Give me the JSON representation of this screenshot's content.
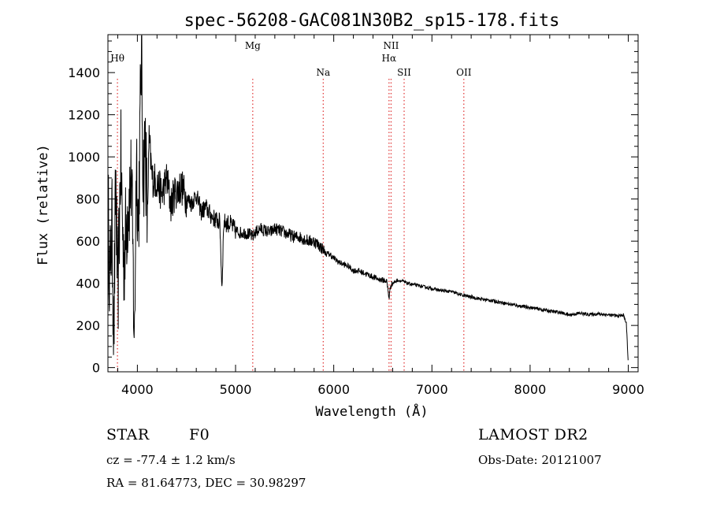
{
  "chart_data": {
    "type": "line",
    "title": "spec-56208-GAC081N30B2_sp15-178.fits",
    "xlabel": "Wavelength (Å)",
    "ylabel": "Flux (relative)",
    "xlim": [
      3700,
      9100
    ],
    "ylim": [
      -20,
      1580
    ],
    "xticks": [
      4000,
      5000,
      6000,
      7000,
      8000,
      9000
    ],
    "yticks": [
      0,
      200,
      400,
      600,
      800,
      1000,
      1200,
      1400
    ],
    "grid": false,
    "line_color": "#000000",
    "marker_color": "#e03030",
    "spectral_lines": [
      {
        "label": "Hθ",
        "x": 3797,
        "row": 2
      },
      {
        "label": "Mg",
        "x": 5175,
        "row": 1
      },
      {
        "label": "Na",
        "x": 5893,
        "row": 3
      },
      {
        "label": "NII",
        "x": 6584,
        "row": 1
      },
      {
        "label": "Hα",
        "x": 6563,
        "row": 2
      },
      {
        "label": "SII",
        "x": 6717,
        "row": 3
      },
      {
        "label": "OII",
        "x": 7325,
        "row": 3
      }
    ],
    "series": [
      {
        "x": [
          3700,
          3720,
          3740,
          3760,
          3780,
          3800,
          3830,
          3860,
          3900,
          3940,
          3970,
          3990,
          4010,
          4040,
          4060,
          4080,
          4101,
          4120,
          4150,
          4200,
          4250,
          4300,
          4340,
          4380,
          4450,
          4500,
          4550,
          4600,
          4650,
          4700,
          4750,
          4800,
          4840,
          4861,
          4880,
          4950,
          5000,
          5050,
          5100,
          5150,
          5175,
          5200,
          5250,
          5300,
          5350,
          5400,
          5450,
          5500,
          5550,
          5600,
          5650,
          5700,
          5750,
          5800,
          5850,
          5893,
          5920,
          5950,
          6000,
          6050,
          6100,
          6150,
          6200,
          6250,
          6300,
          6350,
          6400,
          6450,
          6500,
          6540,
          6563,
          6580,
          6600,
          6650,
          6700,
          6750,
          6800,
          6900,
          7000,
          7100,
          7200,
          7300,
          7400,
          7500,
          7600,
          7700,
          7800,
          7900,
          8000,
          8100,
          8200,
          8300,
          8400,
          8500,
          8600,
          8700,
          8800,
          8900,
          8950,
          8980,
          8990,
          9000
        ],
        "y": [
          800,
          400,
          700,
          150,
          900,
          300,
          1000,
          500,
          750,
          900,
          100,
          1050,
          650,
          1500,
          900,
          1100,
          700,
          1080,
          900,
          880,
          820,
          900,
          770,
          830,
          860,
          800,
          780,
          820,
          740,
          760,
          720,
          700,
          690,
          380,
          690,
          680,
          650,
          640,
          640,
          630,
          620,
          640,
          660,
          650,
          640,
          660,
          650,
          640,
          630,
          620,
          620,
          610,
          600,
          600,
          580,
          560,
          540,
          540,
          520,
          500,
          490,
          480,
          460,
          460,
          450,
          440,
          430,
          420,
          415,
          410,
          330,
          390,
          400,
          415,
          410,
          400,
          395,
          385,
          375,
          365,
          360,
          345,
          335,
          325,
          318,
          310,
          300,
          292,
          285,
          277,
          268,
          262,
          250,
          258,
          252,
          255,
          250,
          245,
          250,
          210,
          120,
          10
        ]
      }
    ]
  },
  "info": {
    "object_type": "STAR",
    "subclass": "F0",
    "velocity": "cz = -77.4 ± 1.2 km/s",
    "coords": "RA =  81.64773, DEC =  30.98297",
    "survey": "LAMOST DR2",
    "obs_date": "Obs-Date: 20121007"
  }
}
